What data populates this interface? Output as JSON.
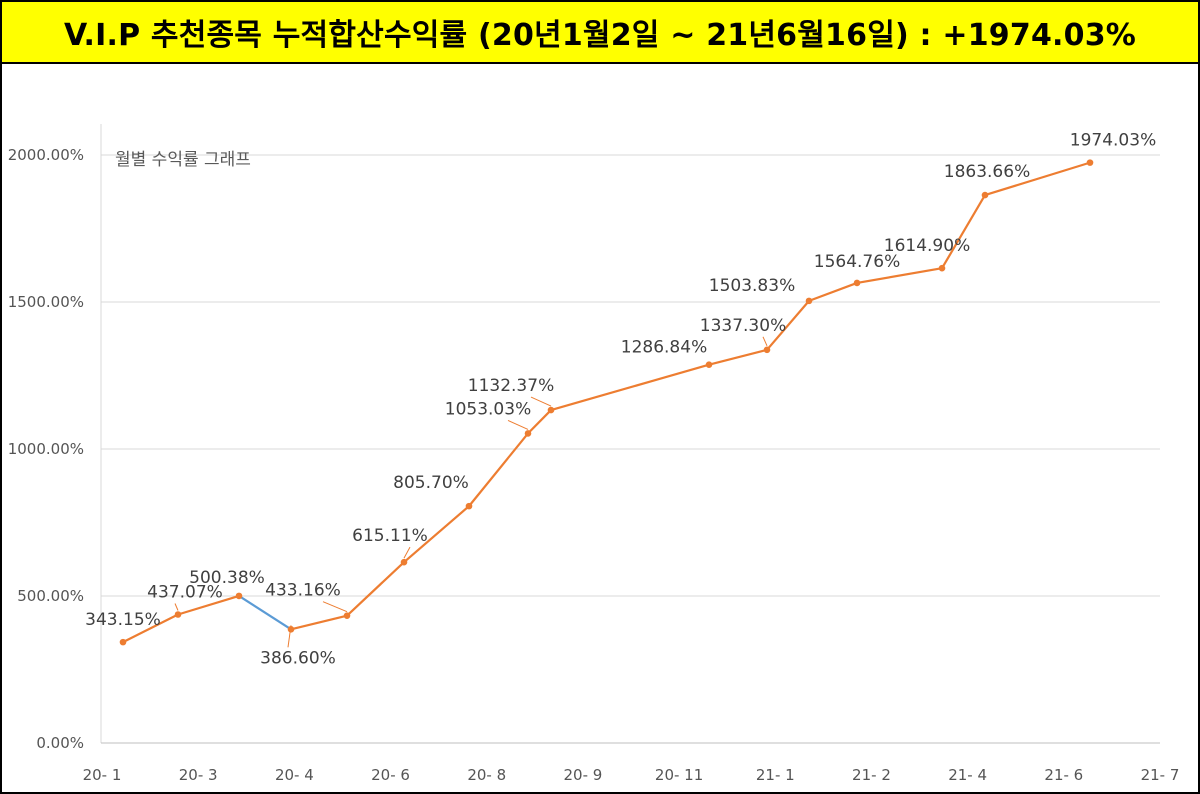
{
  "banner": {
    "title": "V.I.P 추천종목 누적합산수익률 (20년1월2일  ~ 21년6월16일) : +1974.03%"
  },
  "colors": {
    "banner_bg": "#ffff00",
    "series_line": "#ed7d31",
    "segment_down": "#5b9bd5",
    "grid": "#d9d9d9"
  },
  "chart_data": {
    "type": "line",
    "title": "월별 수익률 그래프",
    "x_ticks": [
      "20- 1",
      "20- 3",
      "20- 4",
      "20- 6",
      "20- 8",
      "20- 9",
      "20- 11",
      "21- 1",
      "21- 2",
      "21- 4",
      "21- 6",
      "21- 7"
    ],
    "y_ticks": [
      "0.00%",
      "500.00%",
      "1000.00%",
      "1500.00%",
      "2000.00%"
    ],
    "ylim": [
      0,
      2000
    ],
    "grid": true,
    "legend": "none",
    "x": [
      "2020-01",
      "2020-02",
      "2020-03",
      "2020-04",
      "2020-05",
      "2020-06",
      "2020-07",
      "2020-08",
      "2020-09",
      "2020-11",
      "2020-12",
      "2021-01",
      "2021-02",
      "2021-03",
      "2021-04",
      "2021-06"
    ],
    "values": [
      343.15,
      437.07,
      500.38,
      386.6,
      433.16,
      615.11,
      805.7,
      1053.03,
      1132.37,
      1286.84,
      1337.3,
      1503.83,
      1564.76,
      1614.9,
      1863.66,
      1974.03
    ],
    "labels": [
      "343.15%",
      "437.07%",
      "500.38%",
      "386.60%",
      "433.16%",
      "615.11%",
      "805.70%",
      "1053.03%",
      "1132.37%",
      "1286.84%",
      "1337.30%",
      "1503.83%",
      "1564.76%",
      "1614.90%",
      "1863.66%",
      "1974.03%"
    ]
  }
}
